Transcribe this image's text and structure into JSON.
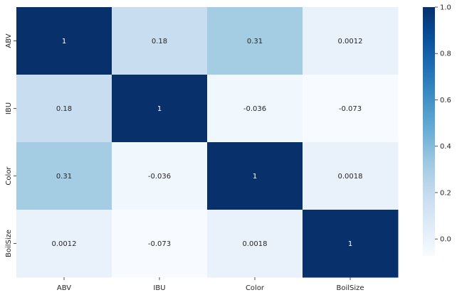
{
  "chart_data": {
    "type": "heatmap",
    "title": "",
    "xlabel": "",
    "ylabel": "",
    "x_categories": [
      "ABV",
      "IBU",
      "Color",
      "BoilSize"
    ],
    "y_categories": [
      "ABV",
      "IBU",
      "Color",
      "BoilSize"
    ],
    "values": [
      [
        1,
        0.18,
        0.31,
        0.0012
      ],
      [
        0.18,
        1,
        -0.036,
        -0.073
      ],
      [
        0.31,
        -0.036,
        1,
        0.0018
      ],
      [
        0.0012,
        -0.073,
        0.0018,
        1
      ]
    ],
    "value_labels": [
      [
        "1",
        "0.18",
        "0.31",
        "0.0012"
      ],
      [
        "0.18",
        "1",
        "-0.036",
        "-0.073"
      ],
      [
        "0.31",
        "-0.036",
        "1",
        "0.0018"
      ],
      [
        "0.0012",
        "-0.073",
        "0.0018",
        "1"
      ]
    ],
    "colormap": "Blues",
    "colors": {
      "low": "#f7fbff",
      "high": "#08306b"
    },
    "colorbar": {
      "vmin": -0.073,
      "vmax": 1.0,
      "ticks": [
        "0.0",
        "0.2",
        "0.4",
        "0.6",
        "0.8",
        "1.0"
      ],
      "tick_values": [
        0.0,
        0.2,
        0.4,
        0.6,
        0.8,
        1.0
      ]
    },
    "grid": false,
    "legend": "colorbar-right"
  }
}
